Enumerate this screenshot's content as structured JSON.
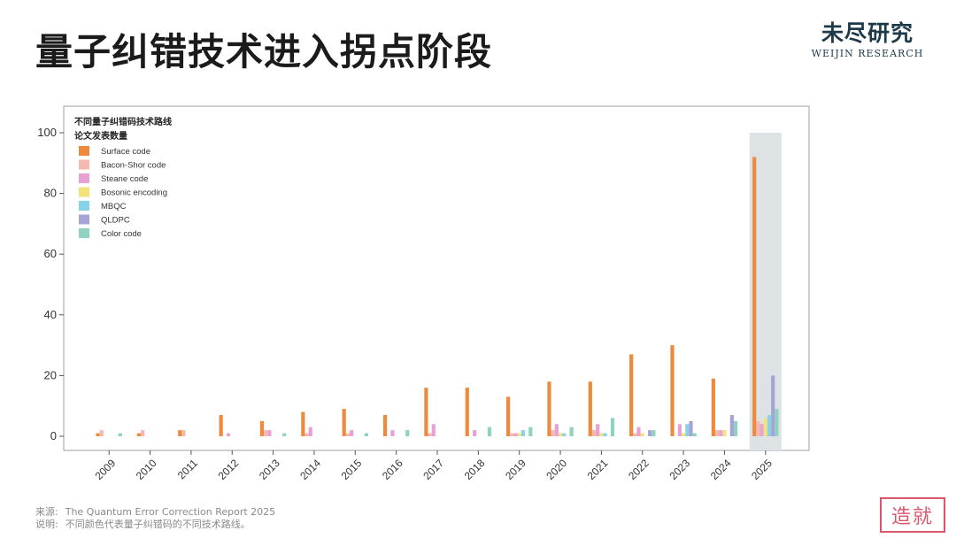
{
  "header": {
    "title": "量子纠错技术进入拐点阶段",
    "brand_cn": "未尽研究",
    "brand_en": "WEIJIN RESEARCH"
  },
  "footer": {
    "source_label": "来源:",
    "source_text": "The Quantum Error Correction Report 2025",
    "note_label": "说明:",
    "note_text": "不同颜色代表量子纠错码的不同技术路线。"
  },
  "seal_text": "造就",
  "chart_data": {
    "type": "bar",
    "title": "不同量子纠错码技术路线",
    "subtitle": "论文发表数量",
    "legend_position": "top-left",
    "grid": false,
    "ylim": [
      0,
      100
    ],
    "yticks": [
      "0",
      "20",
      "40",
      "60",
      "80",
      "100"
    ],
    "categories": [
      "2009",
      "2010",
      "2011",
      "2012",
      "2013",
      "2014",
      "2015",
      "2016",
      "2017",
      "2018",
      "2019",
      "2020",
      "2021",
      "2022",
      "2023",
      "2024",
      "2025"
    ],
    "highlight_category": "2025",
    "series": [
      {
        "name": "Surface code",
        "color": "#EE8A3E",
        "values": [
          1,
          1,
          2,
          7,
          5,
          8,
          9,
          7,
          16,
          16,
          13,
          18,
          18,
          27,
          30,
          19,
          92
        ]
      },
      {
        "name": "Bacon-Shor code",
        "color": "#F6B9AF",
        "values": [
          2,
          2,
          2,
          0,
          2,
          1,
          1,
          0,
          1,
          0,
          1,
          2,
          2,
          1,
          0,
          2,
          5
        ]
      },
      {
        "name": "Steane code",
        "color": "#E7A1D2",
        "values": [
          0,
          0,
          0,
          1,
          2,
          3,
          2,
          2,
          4,
          2,
          1,
          4,
          4,
          3,
          4,
          2,
          4
        ]
      },
      {
        "name": "Bosonic encoding",
        "color": "#F5E17C",
        "values": [
          0,
          0,
          0,
          0,
          0,
          0,
          0,
          0,
          0,
          0,
          1,
          1,
          1,
          1,
          1,
          2,
          6
        ]
      },
      {
        "name": "MBQC",
        "color": "#86D3E8",
        "values": [
          0,
          0,
          0,
          0,
          0,
          0,
          0,
          0,
          0,
          0,
          2,
          1,
          1,
          0,
          4,
          0,
          7
        ]
      },
      {
        "name": "QLDPC",
        "color": "#A7A3D6",
        "values": [
          0,
          0,
          0,
          0,
          0,
          0,
          0,
          0,
          0,
          0,
          0,
          0,
          0,
          2,
          5,
          7,
          20
        ]
      },
      {
        "name": "Color code",
        "color": "#8DD3BF",
        "values": [
          1,
          0,
          0,
          0,
          1,
          0,
          1,
          2,
          0,
          3,
          3,
          3,
          6,
          2,
          1,
          5,
          9
        ]
      }
    ]
  }
}
